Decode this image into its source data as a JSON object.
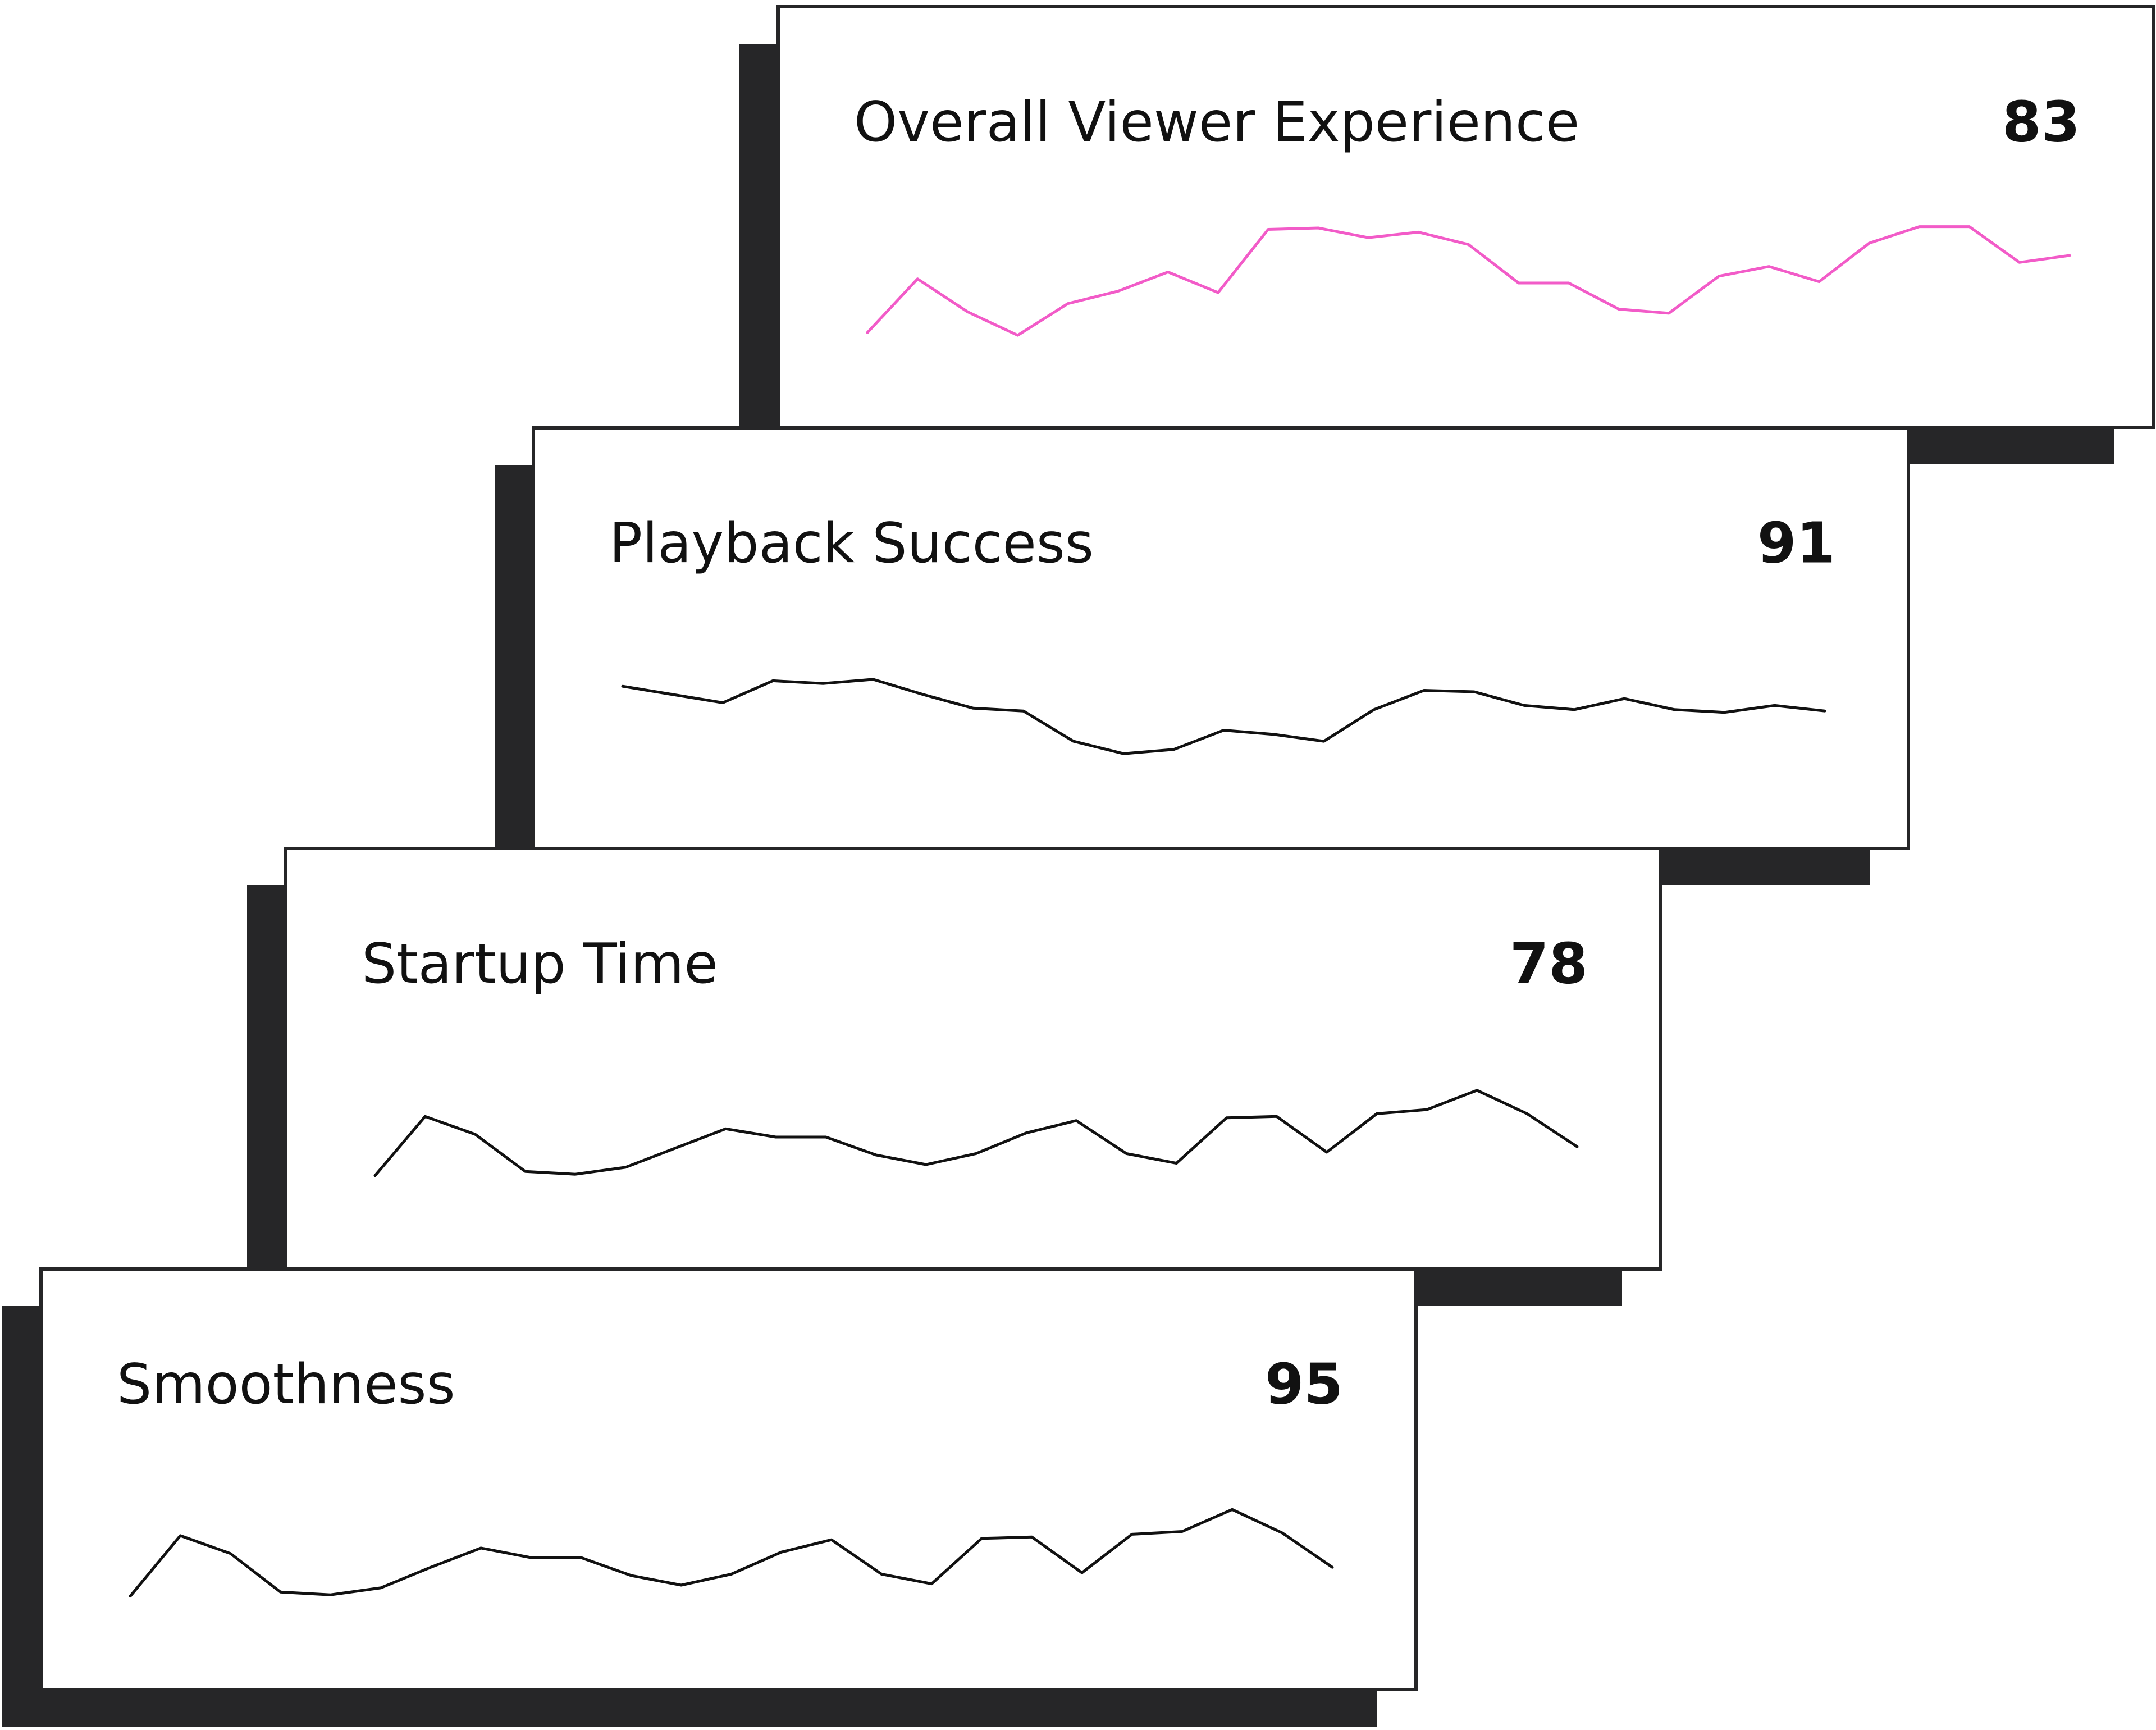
{
  "cards": [
    {
      "title": "Overall Viewer Experience",
      "score": 83,
      "color": "#f25bc8",
      "values": [
        13,
        52,
        28,
        11,
        34,
        43,
        57,
        42,
        88,
        89,
        82,
        86,
        77,
        49,
        49,
        30,
        27,
        54,
        61,
        50,
        78,
        90,
        90,
        64,
        69
      ]
    },
    {
      "title": "Playback Success",
      "score": 91,
      "color": "#111111",
      "values": [
        62,
        56,
        50,
        66,
        64,
        67,
        56,
        46,
        44,
        22,
        13,
        16,
        30,
        27,
        22,
        45,
        59,
        58,
        48,
        45,
        53,
        45,
        43,
        48,
        44
      ]
    },
    {
      "title": "Startup Time",
      "score": 78,
      "color": "#111111",
      "values": [
        12,
        55,
        42,
        15,
        13,
        18,
        32,
        46,
        40,
        40,
        27,
        20,
        28,
        43,
        52,
        28,
        21,
        54,
        55,
        29,
        57,
        60,
        74,
        57,
        33
      ]
    },
    {
      "title": "Smoothness",
      "score": 95,
      "color": "#111111",
      "values": [
        12,
        56,
        43,
        15,
        13,
        18,
        33,
        47,
        40,
        40,
        27,
        20,
        28,
        44,
        53,
        28,
        21,
        54,
        55,
        29,
        57,
        59,
        75,
        58,
        33
      ]
    }
  ]
}
